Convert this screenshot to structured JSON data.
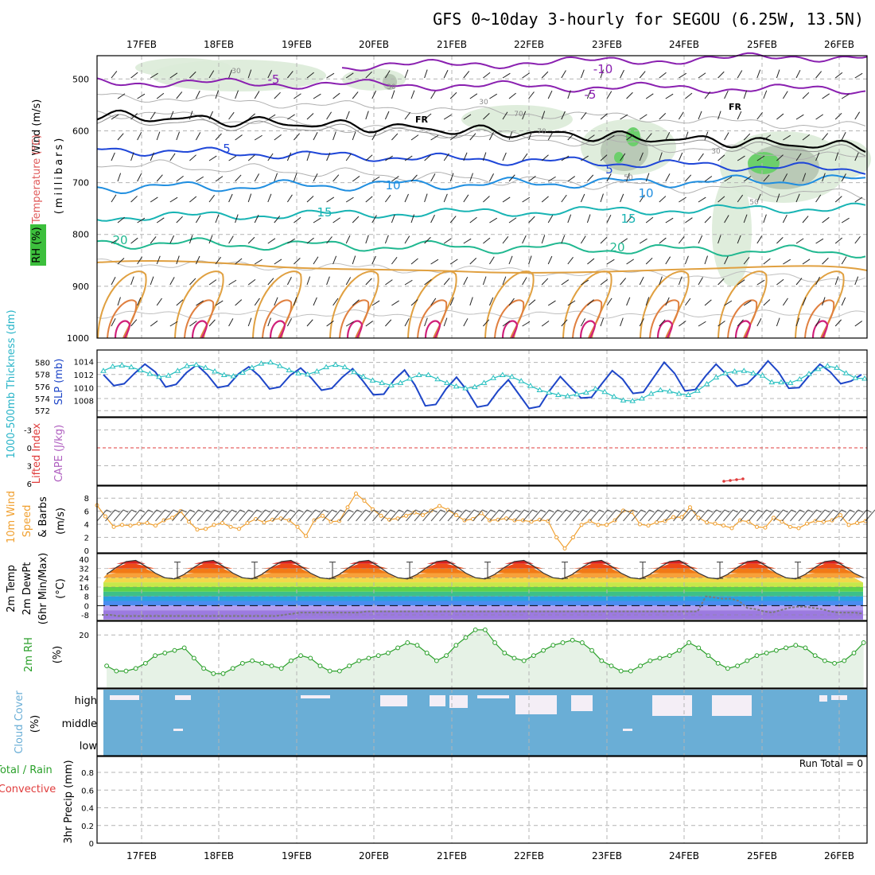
{
  "title": "GFS 0~10day 3-hourly for SEGOU (6.25W, 13.5N)",
  "dates": [
    "17FEB",
    "18FEB",
    "19FEB",
    "20FEB",
    "21FEB",
    "22FEB",
    "23FEB",
    "24FEB",
    "25FEB",
    "26FEB"
  ],
  "colors": {
    "frame": "#000000",
    "grid": "#b4b4b4",
    "slp": "#1e46c8",
    "thickness": "#28c0c0",
    "wind_speed": "#f0a030",
    "rh_line": "#2aa02a",
    "rh_fill": "#e6f2e6",
    "cloud": "#6aaed6",
    "cloud_clear": "#f4eef6",
    "lifted_zero": "#e03c3c",
    "cape_marks": "#e03c3c"
  },
  "panels": {
    "upper_air": {
      "ylabel_parts": [
        "Wind (m/s)",
        "Temperature (°C)",
        "RH (%)"
      ],
      "ylabel_units": "(millibars)",
      "pressure_ticks": [
        "500",
        "600",
        "700",
        "800",
        "900",
        "1000"
      ],
      "isotherm_labels": [
        "-10",
        "-5",
        "-5",
        "FR",
        "FR",
        "5",
        "5",
        "10",
        "10",
        "15",
        "15",
        "20",
        "20"
      ],
      "rh_contour_labels": [
        "30",
        "30",
        "30",
        "30",
        "50",
        "50",
        "70",
        "70"
      ]
    },
    "slp_thickness": {
      "ylabel_left": "1000-500mb Thickness (dm)",
      "ylabel_right": "SLP (mb)",
      "thickness_ticks": [
        "580",
        "578",
        "576",
        "574",
        "572"
      ],
      "slp_ticks": [
        "1014",
        "1012",
        "1010",
        "1008"
      ]
    },
    "stability": {
      "ylabel_left": "Lifted Index",
      "ylabel_right": "CAPE (J/kg)",
      "li_ticks": [
        "-3",
        "0",
        "3",
        "6"
      ]
    },
    "wind10m": {
      "ylabel_left": "10m Wind",
      "ylabel_mid": "Speed",
      "ylabel_right": "& Barbs",
      "units": "(m/s)",
      "ticks": [
        "8",
        "6",
        "4",
        "2",
        "0"
      ]
    },
    "temp2m": {
      "ylabel_left": "2m Temp",
      "ylabel_mid": "2m DewPt",
      "ylabel_right": "(6hr Min/Max)",
      "units": "(°C)",
      "ticks": [
        "40",
        "32",
        "24",
        "16",
        "8",
        "0",
        "-8"
      ]
    },
    "rh2m": {
      "ylabel": "2m RH",
      "units": "(%)",
      "ticks": [
        "20"
      ]
    },
    "cloud": {
      "ylabel": "Cloud Cover",
      "units": "(%)",
      "levels": [
        "high",
        "middle",
        "low"
      ]
    },
    "precip": {
      "ylabel_a": "Total / Rain",
      "ylabel_b": "Convective",
      "ylabel_c": "3hr Precip (mm)",
      "ticks": [
        "0.8",
        "0.6",
        "0.4",
        "0.2",
        "0"
      ],
      "run_total": "Run Total = 0"
    }
  },
  "chart_data": {
    "type": "line",
    "x_unit": "3-hourly steps from 16FEB 12Z",
    "slp_mb": [
      1012.0,
      1010.3,
      1010.6,
      1012.2,
      1013.6,
      1012.4,
      1010.1,
      1010.5,
      1012.3,
      1013.5,
      1012.0,
      1010.0,
      1010.3,
      1012.1,
      1013.2,
      1011.8,
      1009.8,
      1010.1,
      1011.9,
      1013.0,
      1011.5,
      1009.6,
      1009.9,
      1011.6,
      1012.9,
      1011.0,
      1008.9,
      1009.0,
      1011.2,
      1012.7,
      1010.4,
      1007.2,
      1007.4,
      1009.8,
      1011.6,
      1009.6,
      1007.0,
      1007.3,
      1009.5,
      1011.2,
      1009.0,
      1006.8,
      1007.1,
      1009.6,
      1011.7,
      1010.0,
      1008.4,
      1008.5,
      1010.6,
      1012.6,
      1011.3,
      1009.1,
      1009.3,
      1011.6,
      1013.9,
      1012.2,
      1009.5,
      1009.7,
      1011.8,
      1013.6,
      1012.0,
      1010.2,
      1010.6,
      1012.2,
      1014.1,
      1012.4,
      1009.9,
      1010.0,
      1011.9,
      1013.6,
      1012.4,
      1010.6,
      1011.0,
      1012.0
    ],
    "thickness_dm": [
      578.6,
      579.3,
      579.5,
      579.2,
      578.7,
      578.1,
      577.6,
      577.8,
      578.6,
      579.4,
      579.6,
      579.1,
      578.5,
      577.9,
      577.7,
      578.3,
      579.1,
      579.8,
      580.0,
      579.4,
      578.7,
      578.2,
      578.0,
      578.5,
      579.2,
      579.6,
      579.2,
      578.4,
      577.6,
      577.0,
      576.6,
      576.2,
      576.6,
      577.3,
      577.9,
      577.9,
      577.2,
      576.6,
      576.0,
      575.7,
      575.9,
      576.6,
      577.4,
      577.9,
      577.6,
      576.9,
      576.1,
      575.4,
      575.0,
      574.6,
      574.4,
      574.7,
      575.0,
      575.6,
      575.1,
      574.3,
      573.7,
      573.6,
      574.0,
      574.8,
      575.4,
      575.2,
      574.8,
      574.6,
      575.3,
      576.4,
      577.5,
      578.2,
      578.5,
      578.6,
      578.2,
      577.8,
      576.7,
      576.7,
      576.6,
      577.2,
      578.1,
      578.9,
      579.4,
      579.1,
      578.2,
      577.4,
      577.3
    ],
    "wind10m_ms": [
      6.9,
      5.2,
      3.6,
      3.9,
      3.8,
      4.1,
      4.2,
      3.8,
      4.6,
      5.0,
      6.0,
      4.4,
      3.2,
      3.3,
      3.9,
      4.2,
      3.6,
      3.3,
      4.2,
      4.8,
      4.3,
      4.7,
      4.9,
      4.6,
      3.6,
      2.2,
      4.6,
      5.3,
      4.4,
      4.5,
      6.6,
      8.7,
      7.6,
      6.3,
      5.3,
      4.7,
      4.9,
      5.3,
      5.8,
      5.4,
      6.1,
      6.8,
      6.2,
      5.4,
      4.6,
      4.8,
      5.7,
      4.6,
      4.7,
      4.9,
      4.6,
      4.6,
      4.4,
      4.7,
      4.5,
      2.0,
      0.3,
      2.0,
      3.9,
      4.5,
      3.9,
      3.9,
      4.6,
      6.1,
      5.9,
      4.0,
      3.8,
      4.3,
      4.5,
      5.1,
      5.1,
      6.6,
      5.0,
      4.3,
      4.1,
      3.8,
      3.4,
      4.6,
      4.4,
      3.6,
      3.5,
      5.0,
      4.4,
      3.6,
      3.4,
      4.1,
      4.5,
      4.4,
      4.6,
      5.4,
      3.9,
      4.2,
      4.5
    ],
    "temp2m_c": [
      27,
      33,
      38,
      39,
      34,
      28,
      24,
      23,
      27,
      33,
      38,
      39,
      34,
      28,
      24,
      23,
      27,
      33,
      38,
      39,
      34,
      28,
      24,
      23,
      27,
      33,
      38,
      39,
      34,
      28,
      24,
      23,
      27,
      33,
      38,
      39,
      34,
      28,
      24,
      23,
      27,
      33,
      38,
      39,
      34,
      28,
      24,
      23,
      27,
      33,
      38,
      39,
      34,
      28,
      24,
      23,
      27,
      33,
      38,
      39,
      34,
      28,
      24,
      23,
      27,
      33,
      38,
      39,
      34,
      28,
      24,
      23,
      27,
      33,
      38,
      39,
      34,
      28,
      24,
      23,
      27,
      33,
      38,
      39,
      34
    ],
    "dewpt2m_c": [
      -8,
      -8,
      -9,
      -9,
      -9,
      -9,
      -9,
      -9,
      -9,
      -9,
      -9,
      -9,
      -9,
      -9,
      -9,
      -9,
      -9,
      -9,
      -9,
      -9,
      -9,
      -9,
      -8,
      -7,
      -6,
      -6,
      -6,
      -6,
      -6,
      -6,
      -6,
      -6,
      -5,
      -5,
      -5,
      -5,
      -5,
      -5,
      -5,
      -5,
      -5,
      -5,
      -5,
      -5,
      -5,
      -5,
      -5,
      -5,
      -5,
      -5,
      -5,
      -5,
      -5,
      -5,
      -5,
      -5,
      -5,
      -5,
      -5,
      -5,
      -5,
      -5,
      -5,
      -5,
      -5,
      -5,
      -5,
      -5,
      -5,
      -5,
      -5,
      -5,
      -5,
      8,
      7,
      6,
      6,
      4,
      -2,
      -3,
      -5,
      -6,
      -4,
      -2,
      -1,
      -1,
      -2,
      -3,
      -5,
      -6,
      -6,
      -6,
      -7
    ],
    "rh2m_pct": [
      8,
      6,
      6,
      7,
      9,
      12,
      13,
      14,
      15,
      11,
      7,
      5,
      5,
      7,
      9,
      10,
      9,
      8,
      7,
      10,
      12,
      11,
      8,
      6,
      6,
      8,
      10,
      11,
      12,
      13,
      15,
      17,
      16,
      13,
      10,
      12,
      16,
      19,
      22,
      22,
      17,
      13,
      11,
      10,
      12,
      14,
      16,
      17,
      18,
      17,
      14,
      10,
      8,
      6,
      6,
      8,
      10,
      11,
      12,
      14,
      17,
      15,
      12,
      9,
      7,
      8,
      10,
      12,
      13,
      14,
      15,
      16,
      15,
      12,
      10,
      9,
      10,
      13,
      17,
      20,
      16,
      20,
      16,
      11,
      10,
      12,
      11,
      8,
      8,
      9,
      12,
      13,
      11,
      10,
      12,
      13,
      13
    ]
  }
}
